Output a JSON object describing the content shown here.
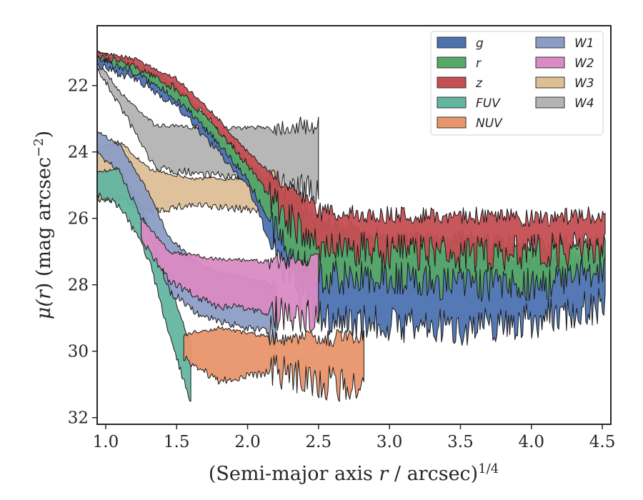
{
  "chart_data": {
    "type": "area",
    "xlabel": {
      "prefix": "(Semi-major axis ",
      "var": "r",
      "mid": " / arcsec)",
      "sup": "1/4"
    },
    "ylabel": {
      "mu": "μ(",
      "var": "r",
      "rest": ") (mag arcsec",
      "sup": "−2",
      "close": ")"
    },
    "xlim": [
      0.94,
      4.56
    ],
    "ylim": [
      32.2,
      20.2
    ],
    "y_inverted": true,
    "x_ticks": [
      1.0,
      1.5,
      2.0,
      2.5,
      3.0,
      3.5,
      4.0,
      4.5
    ],
    "x_tick_labels": [
      "1.0",
      "1.5",
      "2.0",
      "2.5",
      "3.0",
      "3.5",
      "4.0",
      "4.5"
    ],
    "y_ticks": [
      22,
      24,
      26,
      28,
      30,
      32
    ],
    "y_tick_labels": [
      "22",
      "24",
      "26",
      "28",
      "30",
      "32"
    ],
    "legend": {
      "placement": "top-right",
      "columns": 2
    },
    "series": [
      {
        "name": "g",
        "color": "#4c72b0",
        "upper": [
          [
            0.94,
            21.1
          ],
          [
            1.2,
            21.4
          ],
          [
            1.5,
            22.2
          ],
          [
            1.75,
            23.3
          ],
          [
            2.0,
            24.6
          ],
          [
            2.2,
            25.2
          ],
          [
            2.5,
            26.3
          ],
          [
            3.0,
            27.0
          ],
          [
            3.5,
            27.0
          ],
          [
            4.0,
            27.3
          ],
          [
            4.52,
            27.2
          ]
        ],
        "lower": [
          [
            0.94,
            21.4
          ],
          [
            1.2,
            21.8
          ],
          [
            1.5,
            22.6
          ],
          [
            1.75,
            23.8
          ],
          [
            2.0,
            25.0
          ],
          [
            2.2,
            27.2
          ],
          [
            2.5,
            29.0
          ],
          [
            3.0,
            29.2
          ],
          [
            3.5,
            29.3
          ],
          [
            4.0,
            29.1
          ],
          [
            4.52,
            28.6
          ]
        ]
      },
      {
        "name": "r",
        "color": "#55a868",
        "upper": [
          [
            0.94,
            21.0
          ],
          [
            1.2,
            21.3
          ],
          [
            1.5,
            22.0
          ],
          [
            1.75,
            23.1
          ],
          [
            2.0,
            24.3
          ],
          [
            2.2,
            25.0
          ],
          [
            2.5,
            26.1
          ],
          [
            3.0,
            26.6
          ],
          [
            3.5,
            26.6
          ],
          [
            4.0,
            26.8
          ],
          [
            4.52,
            26.7
          ]
        ],
        "lower": [
          [
            0.94,
            21.2
          ],
          [
            1.2,
            21.6
          ],
          [
            1.5,
            22.4
          ],
          [
            1.75,
            23.5
          ],
          [
            2.0,
            24.8
          ],
          [
            2.2,
            26.5
          ],
          [
            2.5,
            27.8
          ],
          [
            3.0,
            27.8
          ],
          [
            3.5,
            28.0
          ],
          [
            4.0,
            28.0
          ],
          [
            4.52,
            27.6
          ]
        ]
      },
      {
        "name": "z",
        "color": "#c44e52",
        "upper": [
          [
            0.94,
            21.0
          ],
          [
            1.2,
            21.2
          ],
          [
            1.5,
            21.8
          ],
          [
            1.75,
            22.8
          ],
          [
            2.0,
            24.0
          ],
          [
            2.2,
            24.8
          ],
          [
            2.5,
            25.8
          ],
          [
            3.0,
            25.9
          ],
          [
            3.5,
            25.9
          ],
          [
            4.0,
            26.0
          ],
          [
            4.52,
            25.9
          ]
        ],
        "lower": [
          [
            0.94,
            21.1
          ],
          [
            1.2,
            21.4
          ],
          [
            1.5,
            22.1
          ],
          [
            1.75,
            23.1
          ],
          [
            2.0,
            24.4
          ],
          [
            2.2,
            25.6
          ],
          [
            2.5,
            26.9
          ],
          [
            3.0,
            27.0
          ],
          [
            3.5,
            27.1
          ],
          [
            4.0,
            27.0
          ],
          [
            4.52,
            26.9
          ]
        ]
      },
      {
        "name": "FUV",
        "color": "#64b5a0",
        "upper": [
          [
            0.94,
            24.6
          ],
          [
            1.1,
            24.5
          ],
          [
            1.3,
            26.1
          ],
          [
            1.45,
            28.0
          ],
          [
            1.6,
            29.8
          ]
        ],
        "lower": [
          [
            0.94,
            25.3
          ],
          [
            1.1,
            25.6
          ],
          [
            1.3,
            27.2
          ],
          [
            1.45,
            29.5
          ],
          [
            1.6,
            31.6
          ]
        ]
      },
      {
        "name": "NUV",
        "color": "#e8956b",
        "upper": [
          [
            1.55,
            29.5
          ],
          [
            1.8,
            29.3
          ],
          [
            2.2,
            29.6
          ],
          [
            2.82,
            29.6
          ]
        ],
        "lower": [
          [
            1.55,
            30.2
          ],
          [
            1.8,
            30.9
          ],
          [
            2.2,
            30.6
          ],
          [
            2.82,
            31.2
          ]
        ]
      },
      {
        "name": "W1",
        "color": "#8c9dc5",
        "upper": [
          [
            0.94,
            23.4
          ],
          [
            1.1,
            23.8
          ],
          [
            1.3,
            25.2
          ],
          [
            1.45,
            26.6
          ],
          [
            1.7,
            27.5
          ],
          [
            2.0,
            27.8
          ],
          [
            2.2,
            28.0
          ]
        ],
        "lower": [
          [
            0.94,
            24.0
          ],
          [
            1.1,
            24.6
          ],
          [
            1.3,
            26.4
          ],
          [
            1.45,
            28.2
          ],
          [
            1.7,
            29.0
          ],
          [
            2.0,
            29.3
          ],
          [
            2.2,
            29.4
          ]
        ]
      },
      {
        "name": "W2",
        "color": "#da8bc3",
        "upper": [
          [
            1.25,
            26.0
          ],
          [
            1.45,
            27.0
          ],
          [
            1.75,
            27.2
          ],
          [
            2.1,
            27.3
          ],
          [
            2.5,
            27.2
          ]
        ],
        "lower": [
          [
            1.25,
            26.6
          ],
          [
            1.45,
            27.9
          ],
          [
            1.75,
            28.6
          ],
          [
            2.1,
            28.8
          ],
          [
            2.5,
            28.9
          ]
        ]
      },
      {
        "name": "W3",
        "color": "#ddbf96",
        "upper": [
          [
            0.94,
            23.8
          ],
          [
            1.1,
            23.7
          ],
          [
            1.3,
            24.5
          ],
          [
            1.6,
            24.8
          ],
          [
            2.2,
            24.8
          ]
        ],
        "lower": [
          [
            0.94,
            25.5
          ],
          [
            1.1,
            25.4
          ],
          [
            1.3,
            25.8
          ],
          [
            1.6,
            25.6
          ],
          [
            2.2,
            25.8
          ]
        ]
      },
      {
        "name": "W4",
        "color": "#b3b3b3",
        "upper": [
          [
            0.94,
            21.2
          ],
          [
            1.1,
            22.2
          ],
          [
            1.35,
            23.2
          ],
          [
            1.8,
            23.3
          ],
          [
            2.5,
            23.2
          ]
        ],
        "lower": [
          [
            0.94,
            21.5
          ],
          [
            1.1,
            22.6
          ],
          [
            1.35,
            24.5
          ],
          [
            1.8,
            24.7
          ],
          [
            2.5,
            25.3
          ]
        ]
      }
    ]
  }
}
